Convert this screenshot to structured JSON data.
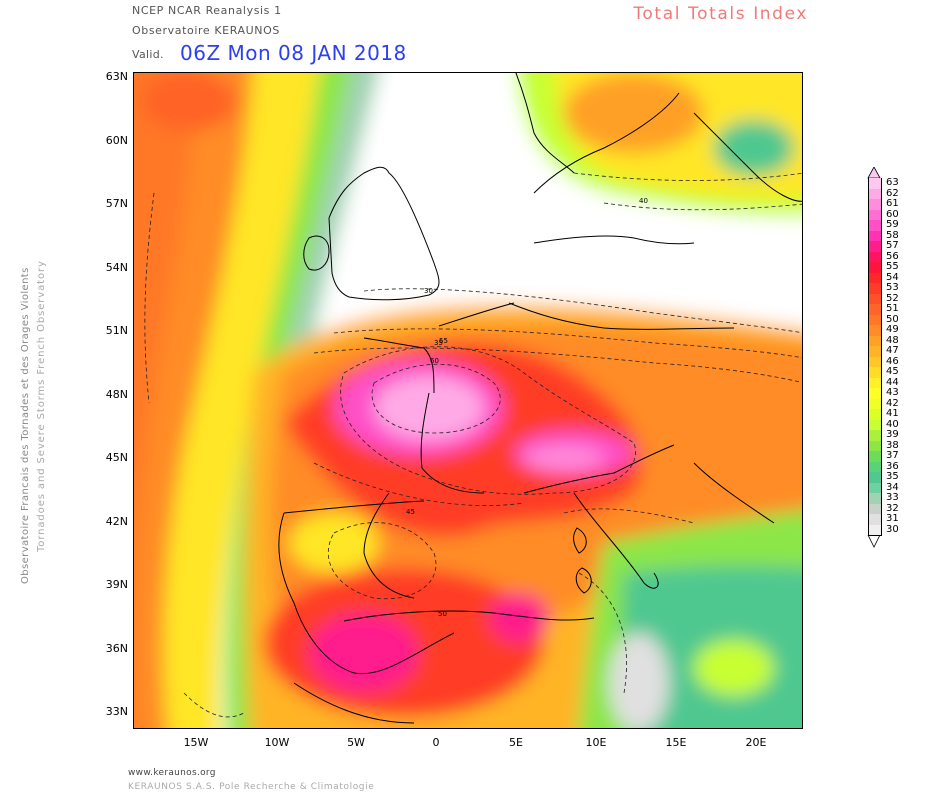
{
  "header": {
    "source": "NCEP NCAR Reanalysis 1",
    "observatory": "Observatoire KERAUNOS",
    "valid_label": "Valid.",
    "valid_time": "06Z Mon 08 JAN 2018",
    "title": "Total Totals Index"
  },
  "side_text": {
    "line1": "Observatoire Francais des Tornades et des Orages Violents",
    "line2": "Tornadoes and Severe Storms French Observatory"
  },
  "axes": {
    "lat_labels": [
      "63N",
      "60N",
      "57N",
      "54N",
      "51N",
      "48N",
      "45N",
      "42N",
      "39N",
      "36N",
      "33N"
    ],
    "lon_labels": [
      "15W",
      "10W",
      "5W",
      "0",
      "5E",
      "10E",
      "15E",
      "20E"
    ]
  },
  "legend": {
    "values": [
      "63",
      "62",
      "61",
      "60",
      "59",
      "58",
      "57",
      "56",
      "55",
      "54",
      "53",
      "52",
      "51",
      "50",
      "49",
      "48",
      "47",
      "46",
      "45",
      "44",
      "43",
      "42",
      "41",
      "40",
      "39",
      "38",
      "37",
      "36",
      "35",
      "34",
      "33",
      "32",
      "31",
      "30"
    ],
    "colors": [
      "#ffc8f0",
      "#ffaae6",
      "#ff8cdc",
      "#ff6ed2",
      "#ff50c8",
      "#ff32b4",
      "#ff1e8c",
      "#ff1464",
      "#ff143c",
      "#ff2828",
      "#ff3c28",
      "#ff5028",
      "#ff6428",
      "#ff7828",
      "#ff8c28",
      "#ffa028",
      "#ffb428",
      "#ffc828",
      "#ffdc28",
      "#fff028",
      "#ffff28",
      "#f0ff28",
      "#dcff28",
      "#c8ff32",
      "#aaf03c",
      "#8ce646",
      "#6edc5a",
      "#5ad278",
      "#50c890",
      "#6ed2a0",
      "#a0d2b4",
      "#c8d2c8",
      "#e0e0e0",
      "#f0f0f0"
    ]
  },
  "contour_labels": [
    "30",
    "35",
    "40",
    "45",
    "50",
    "55",
    "60"
  ],
  "footer": {
    "website": "www.keraunos.org",
    "company": "KERAUNOS S.A.S. Pole Recherche & Climatologie"
  }
}
